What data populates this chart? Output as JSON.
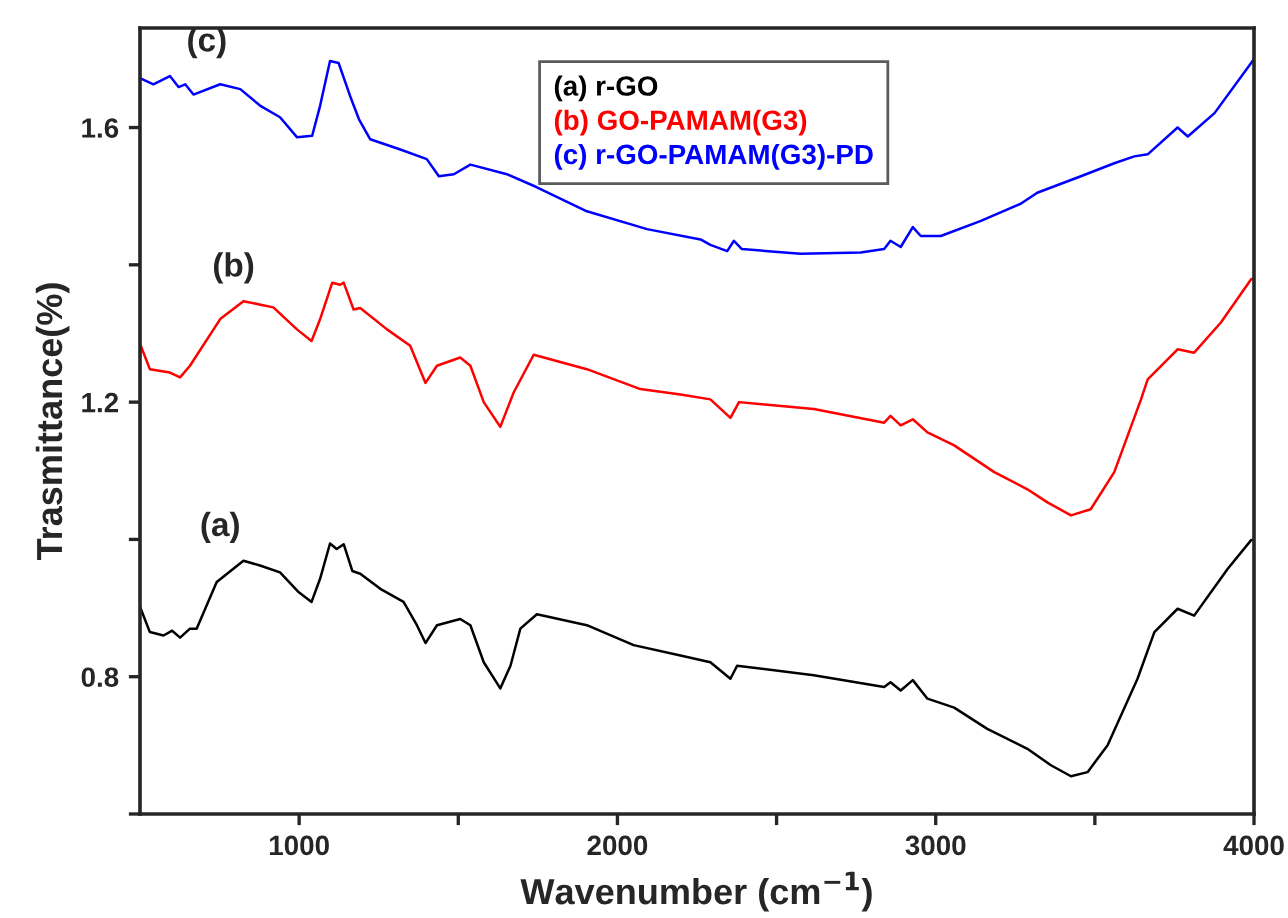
{
  "chart_data": {
    "type": "line",
    "xlabel": "Wavenumber (cm$^{−1}$)",
    "ylabel": "Trasmittance(%)",
    "xlim": [
      500,
      4000
    ],
    "ylim": [
      0.6,
      1.745
    ],
    "xticks": [
      1000,
      {
        "value": 1500,
        "label": null
      },
      2000,
      {
        "value": 2500,
        "label": null
      },
      3000,
      {
        "value": 3500,
        "label": null
      },
      4000
    ],
    "yticks": [
      {
        "value": 0.6,
        "label": null
      },
      0.8,
      {
        "value": 1.0,
        "label": null
      },
      1.2,
      {
        "value": 1.4,
        "label": null
      },
      1.6
    ],
    "grid": false,
    "legend": "top",
    "marker": "none",
    "line_style": "solid",
    "annotations": [
      "(a)",
      "(b)",
      "(c)"
    ],
    "series": [
      {
        "name": "(a) r-GO",
        "color": "#000000",
        "x": [
          500,
          531,
          574,
          601,
          626,
          657,
          678,
          741,
          825,
          877,
          940,
          999,
          1039,
          1066,
          1097,
          1118,
          1140,
          1167,
          1192,
          1255,
          1328,
          1370,
          1397,
          1433,
          1506,
          1538,
          1580,
          1632,
          1664,
          1695,
          1747,
          1904,
          2051,
          2198,
          2292,
          2355,
          2376,
          2617,
          2838,
          2858,
          2890,
          2928,
          2974,
          3058,
          3162,
          3288,
          3362,
          3425,
          3477,
          3540,
          3634,
          3687,
          3760,
          3812,
          3917,
          3991,
          4000
        ],
        "values": [
          0.902,
          0.865,
          0.86,
          0.867,
          0.857,
          0.87,
          0.87,
          0.938,
          0.969,
          0.962,
          0.952,
          0.923,
          0.909,
          0.943,
          0.994,
          0.986,
          0.993,
          0.954,
          0.95,
          0.928,
          0.909,
          0.875,
          0.849,
          0.875,
          0.884,
          0.875,
          0.821,
          0.783,
          0.816,
          0.87,
          0.891,
          0.875,
          0.846,
          0.831,
          0.821,
          0.797,
          0.816,
          0.802,
          0.785,
          0.792,
          0.78,
          0.795,
          0.768,
          0.755,
          0.724,
          0.695,
          0.671,
          0.655,
          0.661,
          0.7,
          0.797,
          0.865,
          0.899,
          0.889,
          0.957,
          0.999,
          1.0
        ]
      },
      {
        "name": "(b) GO-PAMAM(G3)",
        "color": "#ff0000",
        "x": [
          500,
          531,
          594,
          626,
          657,
          752,
          825,
          919,
          993,
          1039,
          1066,
          1104,
          1129,
          1140,
          1171,
          1192,
          1276,
          1349,
          1397,
          1433,
          1506,
          1538,
          1580,
          1632,
          1674,
          1737,
          1904,
          2072,
          2198,
          2292,
          2355,
          2382,
          2617,
          2838,
          2858,
          2890,
          2928,
          2974,
          3058,
          3184,
          3288,
          3351,
          3425,
          3487,
          3561,
          3645,
          3666,
          3760,
          3812,
          3896,
          3991,
          4000
        ],
        "values": [
          1.285,
          1.248,
          1.243,
          1.236,
          1.253,
          1.321,
          1.347,
          1.338,
          1.306,
          1.289,
          1.321,
          1.374,
          1.371,
          1.374,
          1.335,
          1.337,
          1.306,
          1.282,
          1.228,
          1.253,
          1.265,
          1.253,
          1.2,
          1.164,
          1.214,
          1.269,
          1.248,
          1.219,
          1.211,
          1.204,
          1.177,
          1.2,
          1.19,
          1.17,
          1.18,
          1.166,
          1.175,
          1.156,
          1.137,
          1.098,
          1.073,
          1.054,
          1.035,
          1.044,
          1.098,
          1.204,
          1.233,
          1.277,
          1.272,
          1.316,
          1.379,
          1.38
        ]
      },
      {
        "name": "(c) r-GO-PAMAM(G3)-PD",
        "color": "#0000ff",
        "x": [
          500,
          542,
          594,
          621,
          642,
          668,
          752,
          815,
          877,
          940,
          993,
          1041,
          1066,
          1097,
          1124,
          1160,
          1188,
          1223,
          1318,
          1401,
          1439,
          1486,
          1538,
          1653,
          1747,
          1904,
          2093,
          2261,
          2292,
          2345,
          2366,
          2391,
          2575,
          2764,
          2838,
          2858,
          2890,
          2928,
          2953,
          3016,
          3142,
          3267,
          3319,
          3456,
          3561,
          3624,
          3666,
          3760,
          3792,
          3876,
          3991,
          4000
        ],
        "values": [
          1.672,
          1.663,
          1.675,
          1.659,
          1.663,
          1.648,
          1.663,
          1.656,
          1.632,
          1.615,
          1.586,
          1.588,
          1.632,
          1.697,
          1.694,
          1.646,
          1.612,
          1.583,
          1.568,
          1.554,
          1.529,
          1.532,
          1.546,
          1.532,
          1.513,
          1.478,
          1.452,
          1.437,
          1.429,
          1.42,
          1.435,
          1.423,
          1.416,
          1.418,
          1.423,
          1.435,
          1.426,
          1.455,
          1.442,
          1.442,
          1.464,
          1.489,
          1.505,
          1.529,
          1.548,
          1.558,
          1.561,
          1.6,
          1.587,
          1.621,
          1.694,
          1.7
        ]
      }
    ]
  }
}
